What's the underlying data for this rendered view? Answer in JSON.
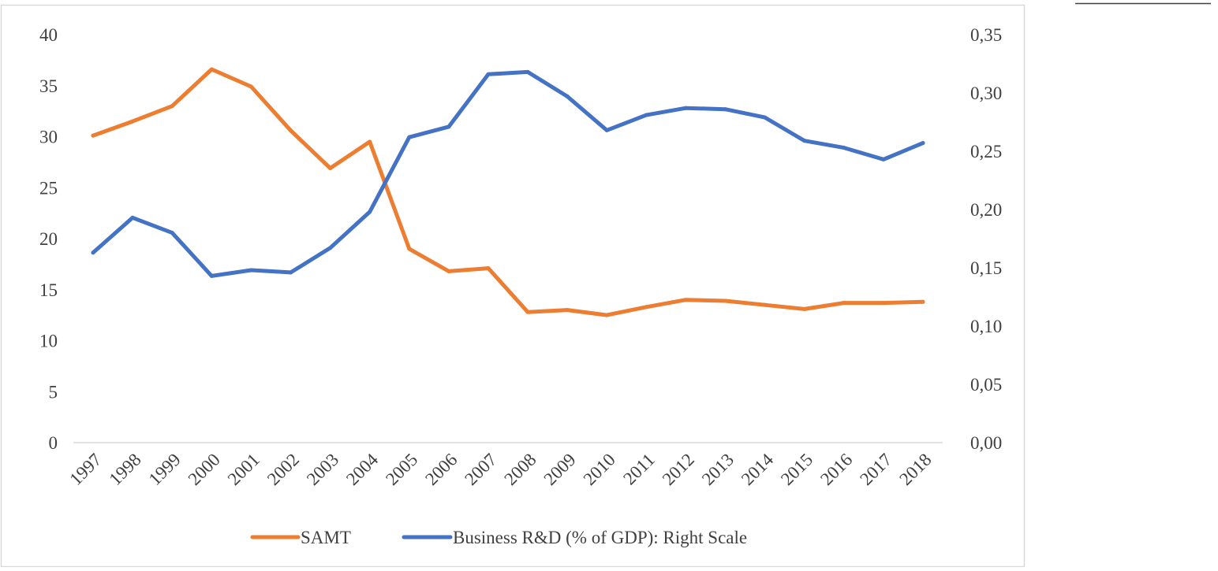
{
  "chart_data": {
    "type": "line",
    "title": "",
    "xlabel": "",
    "ylabel": "",
    "categories": [
      "1997",
      "1998",
      "1999",
      "2000",
      "2001",
      "2002",
      "2003",
      "2004",
      "2005",
      "2006",
      "2007",
      "2008",
      "2009",
      "2010",
      "2011",
      "2012",
      "2013",
      "2014",
      "2015",
      "2016",
      "2017",
      "2018"
    ],
    "y_left": {
      "min": 0,
      "max": 40,
      "ticks": [
        "0",
        "5",
        "10",
        "15",
        "20",
        "25",
        "30",
        "35",
        "40"
      ]
    },
    "y_right": {
      "min": 0,
      "max": 0.35,
      "ticks": [
        "0,00",
        "0,05",
        "0,10",
        "0,15",
        "0,20",
        "0,25",
        "0,30",
        "0,35"
      ]
    },
    "grid": false,
    "legend_position": "bottom",
    "series": [
      {
        "name": "SAMT",
        "axis": "left",
        "color": "#ED7D31",
        "values": [
          30.1,
          31.5,
          33.0,
          36.6,
          34.9,
          30.6,
          26.9,
          29.5,
          19.0,
          16.8,
          17.1,
          12.8,
          13.0,
          12.5,
          13.3,
          14.0,
          13.9,
          13.5,
          13.1,
          13.7,
          13.7,
          13.8
        ]
      },
      {
        "name": "Business R&D (% of GDP): Right Scale",
        "axis": "right",
        "color": "#4472C4",
        "values": [
          0.163,
          0.193,
          0.18,
          0.143,
          0.148,
          0.146,
          0.167,
          0.198,
          0.262,
          0.271,
          0.316,
          0.318,
          0.297,
          0.268,
          0.281,
          0.287,
          0.286,
          0.279,
          0.259,
          0.253,
          0.243,
          0.257
        ]
      }
    ]
  }
}
